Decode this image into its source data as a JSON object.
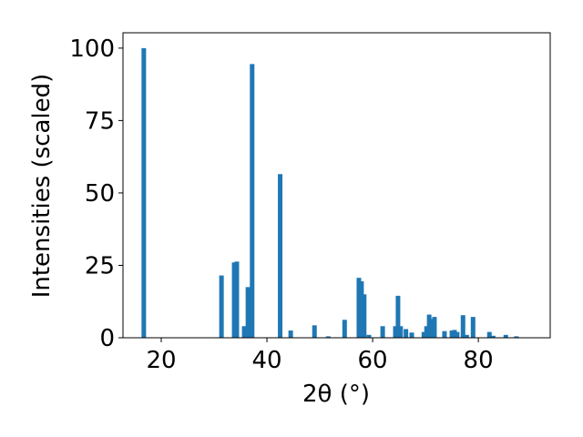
{
  "chart_data": {
    "type": "bar",
    "x_label": "2θ (°)",
    "y_label": "Intensities (scaled)",
    "x": [
      16.7,
      31.4,
      33.8,
      34.3,
      35.7,
      36.4,
      37.2,
      42.5,
      44.5,
      49.0,
      51.6,
      54.7,
      57.4,
      57.9,
      58.4,
      59.3,
      61.9,
      64.3,
      64.8,
      65.3,
      66.3,
      67.4,
      69.7,
      70.2,
      70.7,
      71.2,
      71.7,
      73.6,
      75.0,
      75.5,
      76.0,
      77.1,
      77.8,
      79.0,
      82.1,
      82.8,
      85.2,
      87.2
    ],
    "values": [
      100,
      21.5,
      26,
      26.3,
      4,
      17.5,
      94.5,
      56.5,
      2.5,
      4.3,
      0.5,
      6.2,
      20.7,
      19.5,
      15,
      1,
      4,
      4,
      14.5,
      4,
      3,
      1.8,
      2,
      4,
      8,
      6.5,
      7.2,
      2.3,
      2.5,
      2.7,
      2,
      7.8,
      1,
      7.2,
      2,
      0.7,
      1,
      0.5
    ],
    "color": "#1f77b4",
    "xlim": [
      12.76,
      93.6
    ],
    "ylim": [
      0,
      105.3
    ],
    "xticks": [
      20,
      40,
      60,
      80
    ],
    "yticks": [
      0,
      25,
      50,
      75,
      100
    ]
  }
}
